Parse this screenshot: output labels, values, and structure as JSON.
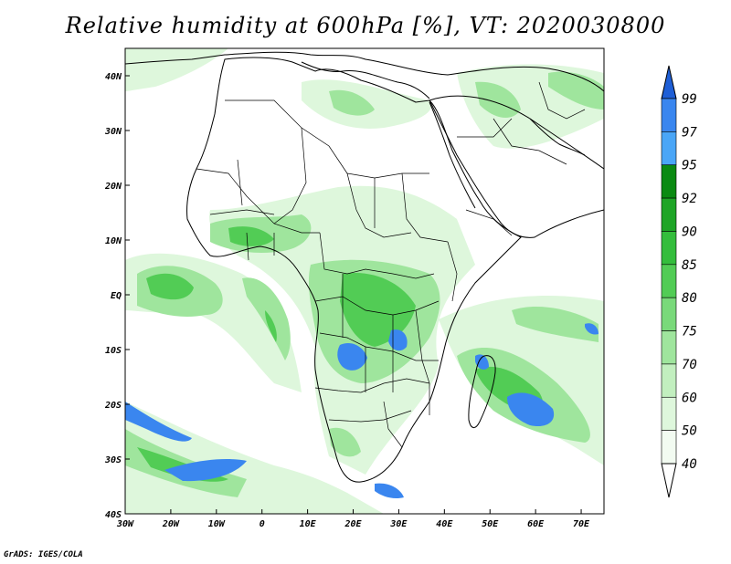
{
  "title": "Relative humidity at 600hPa [%], VT: 2020030800",
  "credit": "GrADS: IGES/COLA",
  "map": {
    "lon_range": [
      -30,
      75
    ],
    "lat_range": [
      -40,
      45
    ],
    "x_ticks": [
      "30W",
      "20W",
      "10W",
      "0",
      "10E",
      "20E",
      "30E",
      "40E",
      "50E",
      "60E",
      "70E"
    ],
    "y_ticks": [
      "40N",
      "30N",
      "20N",
      "10N",
      "EQ",
      "10S",
      "20S",
      "30S",
      "40S"
    ]
  },
  "colorbar": {
    "levels": [
      "99",
      "97",
      "95",
      "92",
      "90",
      "85",
      "80",
      "75",
      "70",
      "60",
      "50",
      "40"
    ],
    "colors": [
      "#1f5fd6",
      "#3a86ef",
      "#4aa6f7",
      "#0a8a12",
      "#1ea526",
      "#34bd3c",
      "#52cc55",
      "#79d97a",
      "#9fe59d",
      "#c2efbf",
      "#def7dc",
      "#f2fbf1"
    ]
  }
}
